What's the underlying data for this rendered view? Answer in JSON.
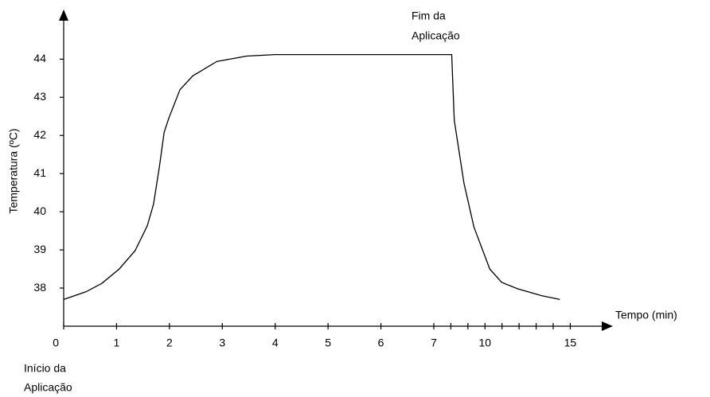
{
  "chart_data": {
    "type": "line",
    "y_label": "Temperatura (ºC)",
    "x_label": "Tempo (min)",
    "annotations": [
      {
        "lines": [
          "Fim da",
          "Aplicação"
        ]
      },
      {
        "lines": [
          "Início da",
          "Aplicação"
        ]
      }
    ],
    "x": [
      0,
      0.42,
      0.72,
      1.05,
      1.35,
      1.58,
      1.7,
      1.81,
      1.9,
      1.99,
      2.2,
      2.44,
      2.9,
      3.46,
      4.0,
      8.05,
      8.2,
      8.77,
      9.35,
      10.28,
      10.98,
      11.92,
      13.32,
      14.39
    ],
    "series": [
      {
        "color": "#000000",
        "values": [
          37.7,
          37.9,
          38.12,
          38.5,
          38.98,
          39.63,
          40.2,
          41.17,
          42.08,
          42.46,
          43.2,
          43.56,
          43.94,
          44.08,
          44.12,
          44.12,
          42.4,
          40.75,
          39.6,
          38.5,
          38.15,
          37.98,
          37.8,
          37.7
        ]
      }
    ],
    "xlim": [
      0,
      17.5
    ],
    "xbreak": 7,
    "xticks": [
      0,
      1,
      2,
      3,
      4,
      5,
      6,
      7,
      10,
      15
    ],
    "xminor": [
      8,
      9,
      11,
      12,
      13,
      14
    ],
    "ylim": [
      37,
      45.3
    ],
    "yticks": [
      38,
      39,
      40,
      41,
      42,
      43,
      44
    ],
    "grid": false
  }
}
